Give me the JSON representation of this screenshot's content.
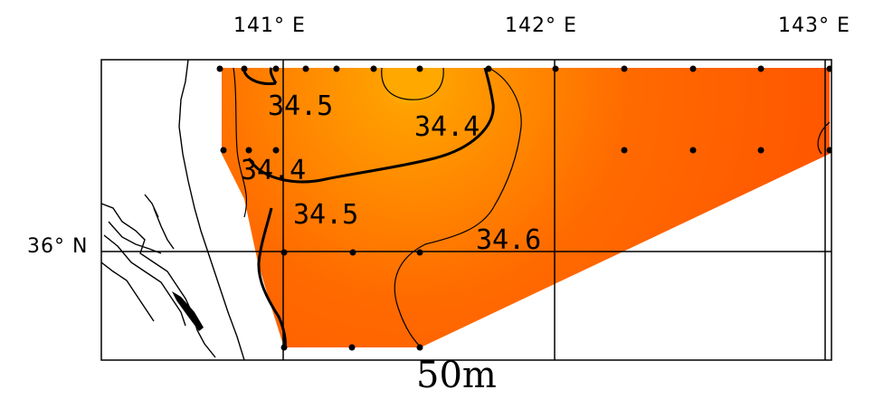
{
  "lon_labels": [
    "141° E",
    "142° E",
    "143° E"
  ],
  "lat_labels": [
    "36° N"
  ],
  "contour_labels": [
    "34.5",
    "34.4",
    "34.4",
    "34.5",
    "34.6"
  ],
  "depth_label": "50m",
  "colors": {
    "low_salinity": "#ffa200",
    "high_salinity": "#ff5500",
    "frame": "#000000",
    "coastline": "#000000"
  }
}
